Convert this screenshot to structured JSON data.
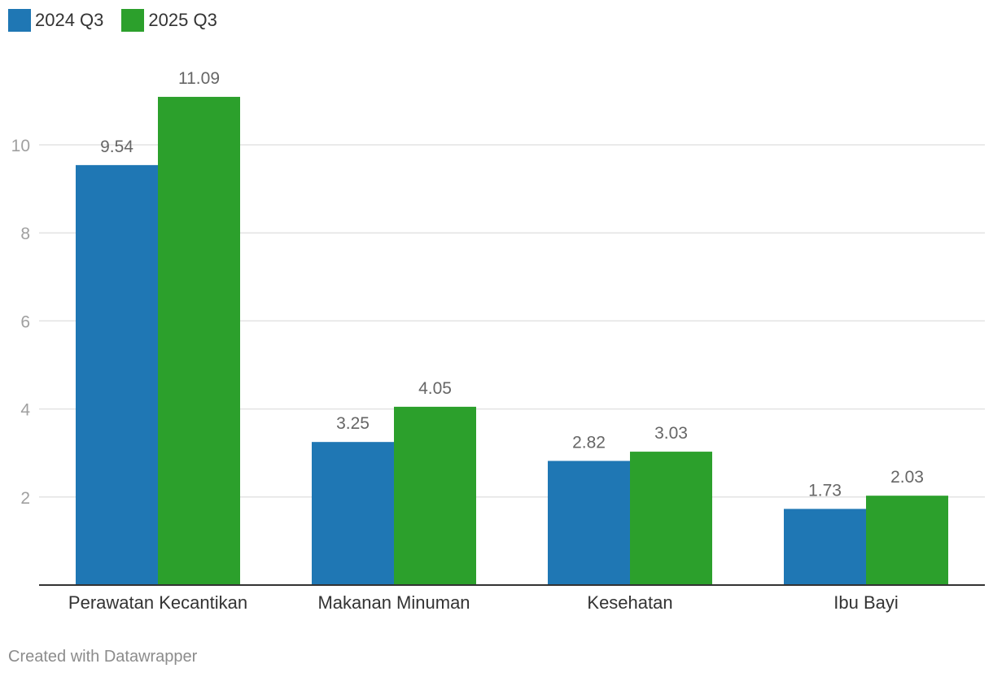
{
  "chart_data": {
    "type": "bar",
    "categories": [
      "Perawatan Kecantikan",
      "Makanan Minuman",
      "Kesehatan",
      "Ibu Bayi"
    ],
    "series": [
      {
        "name": "2024 Q3",
        "color": "#1f77b4",
        "values": [
          9.54,
          3.25,
          2.82,
          1.73
        ]
      },
      {
        "name": "2025 Q3",
        "color": "#2ca02c",
        "values": [
          11.09,
          4.05,
          3.03,
          2.03
        ]
      }
    ],
    "value_labels": [
      [
        "9.54",
        "3.25",
        "2.82",
        "1.73"
      ],
      [
        "11.09",
        "4.05",
        "3.03",
        "2.03"
      ]
    ],
    "yticks": [
      2,
      4,
      6,
      8,
      10
    ],
    "ylim": [
      0,
      12
    ],
    "grid": true,
    "legend_position": "top-left"
  },
  "footer": "Created with Datawrapper"
}
